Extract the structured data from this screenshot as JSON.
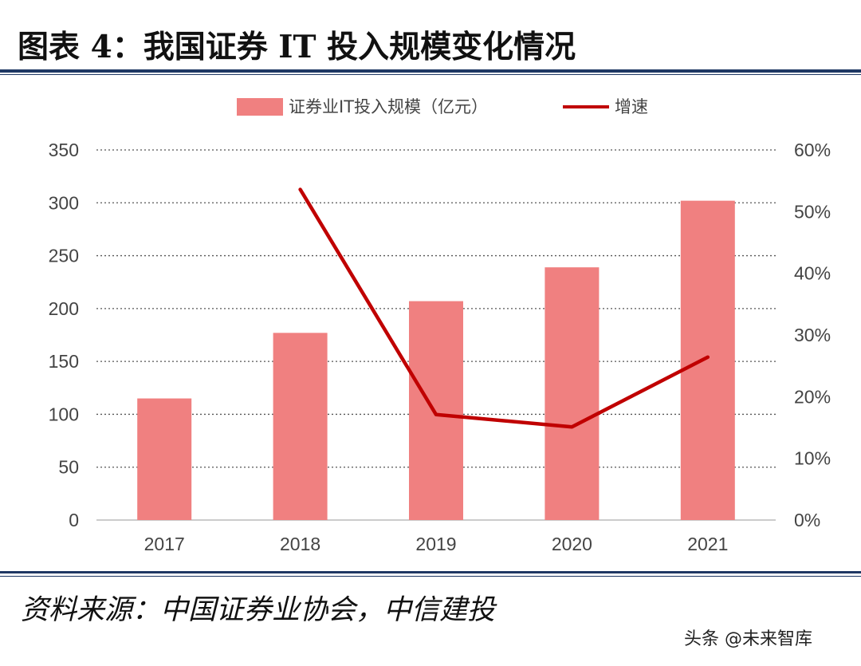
{
  "figure": {
    "title": "图表 4：我国证券 IT 投入规模变化情况",
    "source": "资料来源：中国证券业协会，中信建投",
    "watermark": "头条 @未来智库"
  },
  "colors": {
    "bar": "#f08080",
    "line": "#c00000",
    "rule": "#1f3864",
    "grid": "#555555"
  },
  "chart_data": {
    "type": "bar",
    "categories": [
      "2017",
      "2018",
      "2019",
      "2020",
      "2021"
    ],
    "series": [
      {
        "name": "证券业IT投入规模（亿元）",
        "type": "bar",
        "axis": "left",
        "values": [
          115,
          177,
          207,
          239,
          302
        ]
      },
      {
        "name": "增速",
        "type": "line",
        "axis": "right",
        "values": [
          null,
          53.6,
          17.1,
          15.1,
          26.4
        ]
      }
    ],
    "y_left": {
      "min": 0,
      "max": 350,
      "ticks": [
        "0",
        "50",
        "100",
        "150",
        "200",
        "250",
        "300",
        "350"
      ]
    },
    "y_right": {
      "min": 0,
      "max": 60,
      "ticks": [
        "0%",
        "10%",
        "20%",
        "30%",
        "40%",
        "50%",
        "60%"
      ]
    },
    "grid": true,
    "legend_position": "top"
  }
}
